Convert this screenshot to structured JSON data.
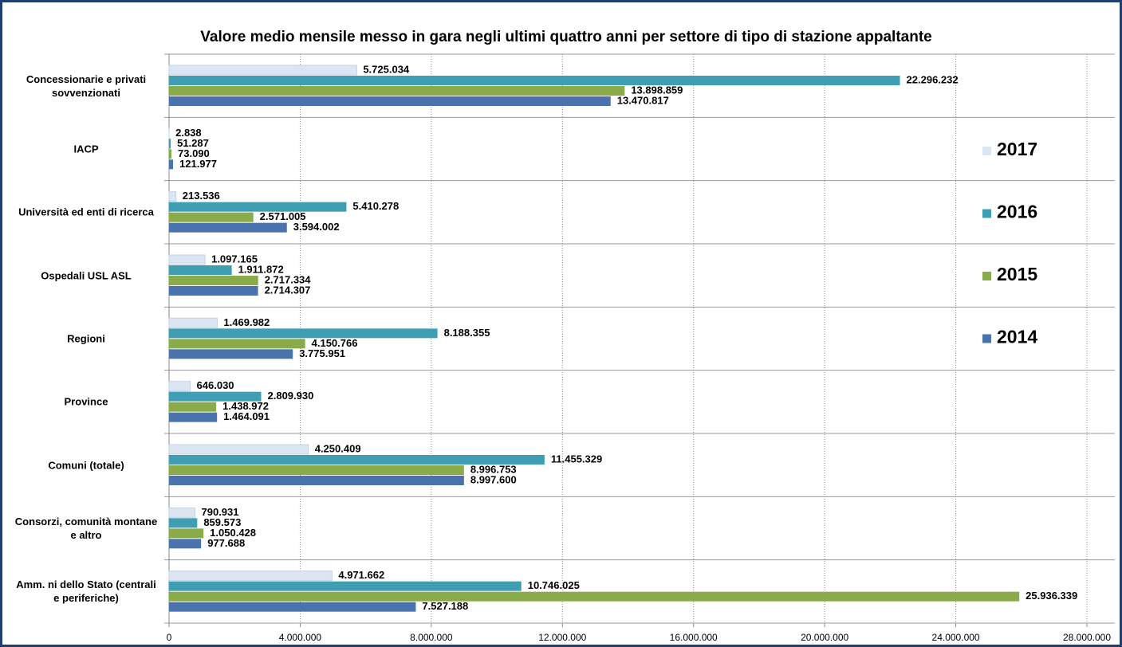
{
  "chart_data": {
    "type": "bar",
    "orientation": "horizontal",
    "title": "Valore medio mensile messo in gara negli ultimi quattro anni per settore di tipo di stazione appaltante",
    "categories": [
      "Concessionarie e privati sovvenzionati",
      "IACP",
      "Università ed enti di ricerca",
      "Ospedali USL ASL",
      "Regioni",
      "Province",
      "Comuni (totale)",
      "Consorzi, comunità montane e altro",
      "Amm. ni dello Stato (centrali e periferiche)"
    ],
    "series": [
      {
        "name": "2017",
        "color": "#dce6f2",
        "values": [
          5725034,
          2838,
          213536,
          1097165,
          1469982,
          646030,
          4250409,
          790931,
          4971662
        ],
        "value_labels": [
          "5.725.034",
          "2.838",
          "213.536",
          "1.097.165",
          "1.469.982",
          "646.030",
          "4.250.409",
          "790.931",
          "4.971.662"
        ]
      },
      {
        "name": "2016",
        "color": "#3f9eb2",
        "values": [
          22296232,
          51287,
          5410278,
          1911872,
          8188355,
          2809930,
          11455329,
          859573,
          10746025
        ],
        "value_labels": [
          "22.296.232",
          "51.287",
          "5.410.278",
          "1.911.872",
          "8.188.355",
          "2.809.930",
          "11.455.329",
          "859.573",
          "10.746.025"
        ]
      },
      {
        "name": "2015",
        "color": "#8aab4a",
        "values": [
          13898859,
          73090,
          2571005,
          2717334,
          4150766,
          1438972,
          8996753,
          1050428,
          25936339
        ],
        "value_labels": [
          "13.898.859",
          "73.090",
          "2.571.005",
          "2.717.334",
          "4.150.766",
          "1.438.972",
          "8.996.753",
          "1.050.428",
          "25.936.339"
        ]
      },
      {
        "name": "2014",
        "color": "#4a72ad",
        "values": [
          13470817,
          121977,
          3594002,
          2714307,
          3775951,
          1464091,
          8997600,
          977688,
          7527188
        ],
        "value_labels": [
          "13.470.817",
          "121.977",
          "3.594.002",
          "2.714.307",
          "3.775.951",
          "1.464.091",
          "8.997.600",
          "977.688",
          "7.527.188"
        ]
      }
    ],
    "xlim": [
      0,
      28000000
    ],
    "xticks": [
      0,
      {
        "value": 4000000,
        "label": "4.000.000"
      },
      {
        "value": 8000000,
        "label": "8.000.000"
      },
      {
        "value": 12000000,
        "label": "12.000.000"
      },
      {
        "value": 16000000,
        "label": "16.000.000"
      },
      {
        "value": 20000000,
        "label": "20.000.000"
      },
      {
        "value": 24000000,
        "label": "24.000.000"
      },
      {
        "value": 28000000,
        "label": "28.000.000"
      }
    ],
    "grid": true,
    "legend": "right"
  }
}
